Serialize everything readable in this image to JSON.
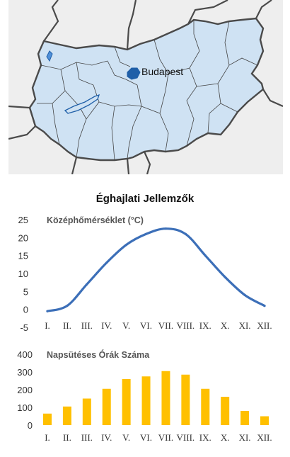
{
  "map": {
    "city_label": "Budapest",
    "colors": {
      "background": "#eeeeee",
      "country_fill": "#cfe2f3",
      "border": "#4a4a4a",
      "county_lines": "#444444",
      "water": "#1f5fa8"
    }
  },
  "charts_title": "Éghajlati Jellemzők",
  "chart_data": [
    {
      "type": "line",
      "title": "Középhőmérséklet (°C)",
      "categories": [
        "I.",
        "II.",
        "III.",
        "IV.",
        "V.",
        "VI.",
        "VII.",
        "VIII.",
        "IX.",
        "X.",
        "XI.",
        "XII."
      ],
      "values": [
        -0.5,
        1,
        7,
        13,
        18,
        21,
        22.5,
        21,
        15,
        9,
        4,
        1
      ],
      "yticks": [
        25,
        20,
        15,
        10,
        5,
        0,
        -5
      ],
      "ylim": [
        -5,
        25
      ],
      "color": "#3c6fb8",
      "grid": false
    },
    {
      "type": "bar",
      "title": "Napsütéses Órák Száma",
      "categories": [
        "I.",
        "II.",
        "III.",
        "IV.",
        "V.",
        "VI.",
        "VII.",
        "VIII.",
        "IX.",
        "X.",
        "XI.",
        "XII."
      ],
      "values": [
        65,
        105,
        150,
        205,
        260,
        275,
        305,
        285,
        205,
        160,
        80,
        50
      ],
      "yticks": [
        400,
        300,
        200,
        100,
        0
      ],
      "ylim": [
        0,
        400
      ],
      "color": "#ffc000",
      "grid": false
    }
  ]
}
